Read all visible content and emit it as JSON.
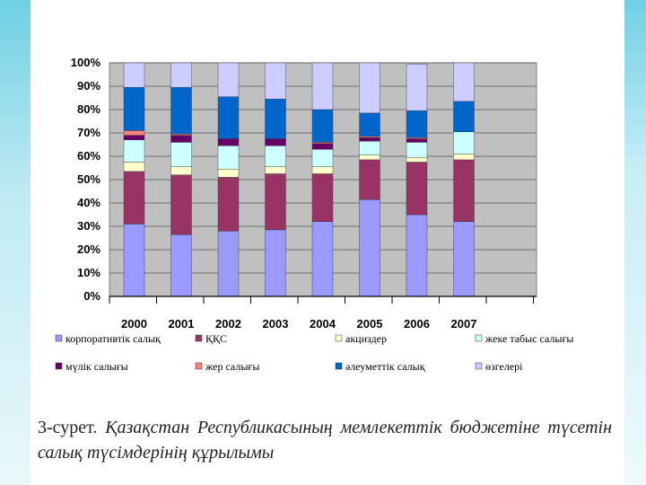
{
  "caption": {
    "lead": "3-сурет.",
    "text": "Қазақстан Республикасының мемлекеттік бюджетіне түсетін салық түсімдерінің құрылымы"
  },
  "chart_data": {
    "type": "bar",
    "stacked": true,
    "percent": true,
    "categories": [
      "2000",
      "2001",
      "2002",
      "2003",
      "2004",
      "2005",
      "2006",
      "2007"
    ],
    "y_ticks": [
      "0%",
      "10%",
      "20%",
      "30%",
      "40%",
      "50%",
      "60%",
      "70%",
      "80%",
      "90%",
      "100%"
    ],
    "ylim": [
      0,
      100
    ],
    "grid": true,
    "legend_position": "bottom",
    "series": [
      {
        "name": "корпоративтік салық",
        "color": "#9999ff",
        "values": [
          31,
          26.5,
          28,
          28.5,
          32,
          41.5,
          35,
          32
        ]
      },
      {
        "name": "ҚҚС",
        "color": "#993366",
        "values": [
          22.5,
          25.5,
          23,
          24,
          20.5,
          17,
          22.5,
          26.5
        ]
      },
      {
        "name": "акциздер",
        "color": "#ffffcc",
        "values": [
          4,
          3.5,
          3.5,
          3,
          3,
          2,
          2,
          2.5
        ]
      },
      {
        "name": "жеке табыс салығы",
        "color": "#ccffff",
        "values": [
          9.5,
          10.5,
          10,
          9,
          7.5,
          6,
          6.5,
          9.5
        ]
      },
      {
        "name": "мүлік салығы",
        "color": "#660066",
        "values": [
          2,
          3,
          3,
          3,
          2.5,
          1.5,
          1.5,
          0
        ]
      },
      {
        "name": "жер салығы",
        "color": "#ff8080",
        "values": [
          2,
          0.5,
          0,
          0,
          0.5,
          0.5,
          0.5,
          0
        ]
      },
      {
        "name": "әлеуметтік салық",
        "color": "#0066cc",
        "values": [
          18.5,
          20,
          18,
          17,
          14,
          10,
          11.5,
          13
        ]
      },
      {
        "name": "өзгелері",
        "color": "#ccccff",
        "values": [
          10.5,
          10.5,
          14.5,
          15.5,
          20,
          21.5,
          20,
          16.5
        ]
      }
    ]
  }
}
